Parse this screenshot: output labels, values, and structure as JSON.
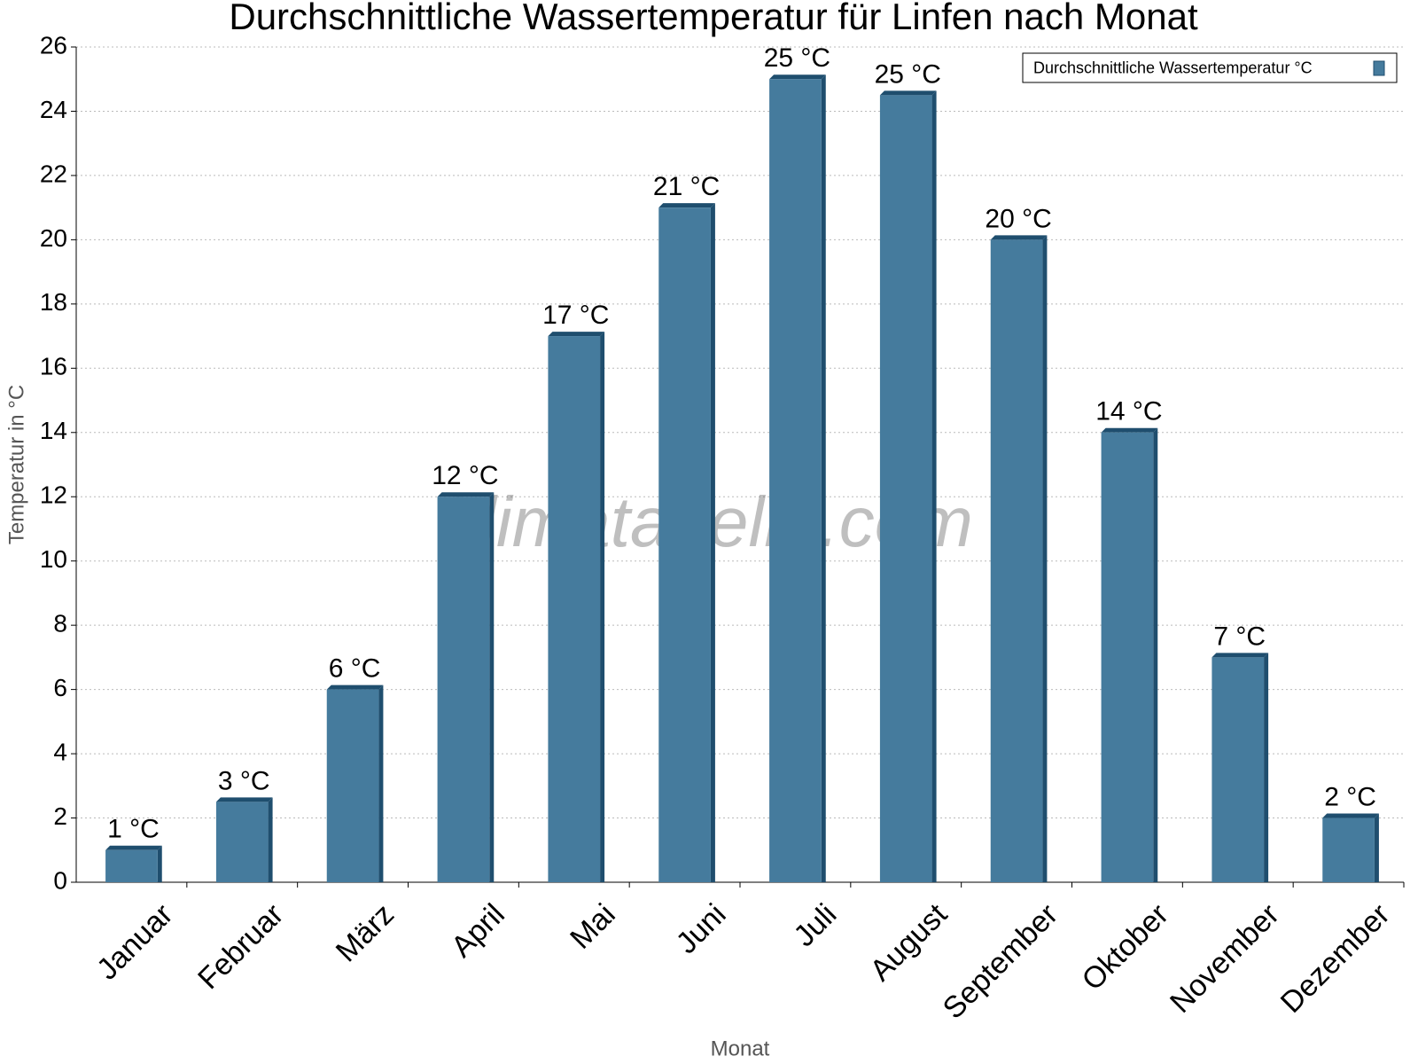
{
  "chart_data": {
    "type": "bar",
    "title": "Durchschnittliche Wassertemperatur für Linfen nach Monat",
    "x_label": "Monat",
    "y_label": "Temperatur in °C",
    "watermark": "klimatabelle.com",
    "categories": [
      "Januar",
      "Februar",
      "März",
      "April",
      "Mai",
      "Juni",
      "Juli",
      "August",
      "September",
      "Oktober",
      "November",
      "Dezember"
    ],
    "series": [
      {
        "name": "Durchschnittliche Wassertemperatur °C",
        "color": "#457b9d",
        "values": [
          1,
          2.5,
          6,
          12,
          17,
          21,
          25,
          24.5,
          20,
          14,
          7,
          2
        ],
        "value_labels": [
          "1 °C",
          "3 °C",
          "6 °C",
          "12 °C",
          "17 °C",
          "21 °C",
          "25 °C",
          "25 °C",
          "20 °C",
          "14 °C",
          "7 °C",
          "2 °C"
        ]
      }
    ],
    "ylim": [
      0,
      26
    ],
    "yticks": [
      0,
      2,
      4,
      6,
      8,
      10,
      12,
      14,
      16,
      18,
      20,
      22,
      24,
      26
    ],
    "grid": true,
    "legend": "top-right"
  }
}
